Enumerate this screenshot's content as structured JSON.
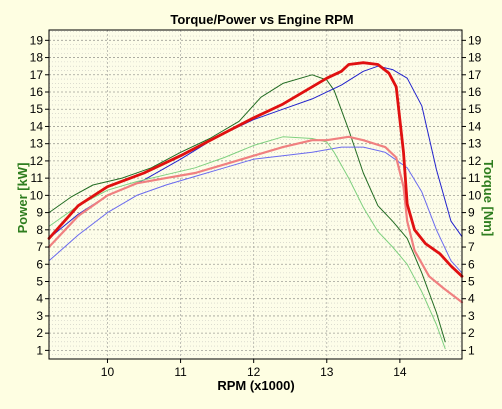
{
  "chart_data": {
    "type": "line",
    "title": "Torque/Power vs Engine RPM",
    "xlabel": "RPM (x1000)",
    "ylabel_left": "Power [kW]",
    "ylabel_right": "Torque [Nm]",
    "ylabel_color": "#2e7d1e",
    "xlim": [
      9.2,
      14.85
    ],
    "ylim": [
      0.5,
      19.6
    ],
    "x_ticks": [
      10,
      11,
      12,
      13,
      14
    ],
    "y_ticks": [
      1,
      2,
      3,
      4,
      5,
      6,
      7,
      8,
      9,
      10,
      11,
      12,
      13,
      14,
      15,
      16,
      17,
      18,
      19
    ],
    "grid": true,
    "series": [
      {
        "color": "#226b22",
        "width": 1,
        "x": [
          9.2,
          9.5,
          9.8,
          10.2,
          10.6,
          11.0,
          11.4,
          11.8,
          12.1,
          12.4,
          12.8,
          13.0,
          13.1,
          13.3,
          13.5,
          13.7,
          13.9,
          14.1,
          14.3,
          14.5,
          14.62
        ],
        "y": [
          9.0,
          9.9,
          10.6,
          11.0,
          11.6,
          12.5,
          13.3,
          14.3,
          15.7,
          16.5,
          17.0,
          16.7,
          16.1,
          13.8,
          11.3,
          9.4,
          8.5,
          7.5,
          5.5,
          3.2,
          1.5
        ]
      },
      {
        "color": "#2222cc",
        "width": 1,
        "x": [
          9.2,
          9.6,
          10.0,
          10.5,
          11.0,
          11.5,
          12.0,
          12.4,
          12.8,
          13.2,
          13.5,
          13.7,
          13.9,
          14.1,
          14.3,
          14.5,
          14.7,
          14.85
        ],
        "y": [
          7.5,
          8.9,
          10.0,
          10.9,
          12.1,
          13.4,
          14.4,
          15.0,
          15.6,
          16.4,
          17.2,
          17.5,
          17.3,
          16.8,
          15.2,
          11.5,
          8.5,
          7.6
        ]
      },
      {
        "color": "#6a6aee",
        "width": 1,
        "x": [
          9.2,
          9.6,
          10.0,
          10.4,
          10.8,
          11.2,
          11.6,
          12.0,
          12.4,
          12.8,
          13.2,
          13.5,
          13.8,
          14.1,
          14.3,
          14.5,
          14.7,
          14.85
        ],
        "y": [
          6.2,
          7.7,
          9.0,
          10.0,
          10.6,
          11.1,
          11.6,
          12.1,
          12.3,
          12.5,
          12.8,
          12.8,
          12.5,
          11.6,
          10.2,
          8.0,
          6.2,
          5.5
        ]
      },
      {
        "color": "#7fd07f",
        "width": 1,
        "x": [
          9.2,
          9.6,
          10.0,
          10.4,
          10.8,
          11.2,
          11.6,
          12.0,
          12.4,
          12.8,
          13.0,
          13.1,
          13.3,
          13.5,
          13.7,
          13.9,
          14.1,
          14.3,
          14.5,
          14.62
        ],
        "y": [
          8.2,
          9.4,
          10.3,
          10.8,
          11.2,
          11.6,
          12.2,
          12.9,
          13.4,
          13.3,
          13.1,
          12.5,
          11.0,
          9.3,
          7.9,
          7.0,
          6.0,
          4.4,
          2.5,
          1.1
        ]
      },
      {
        "color": "#f08080",
        "width": 2.2,
        "x": [
          9.2,
          9.6,
          10.0,
          10.4,
          10.8,
          11.2,
          11.6,
          12.0,
          12.4,
          12.8,
          13.0,
          13.3,
          13.5,
          13.8,
          13.95,
          14.05,
          14.1,
          14.2,
          14.4,
          14.6,
          14.85
        ],
        "y": [
          7.0,
          8.8,
          10.0,
          10.7,
          11.0,
          11.3,
          11.8,
          12.3,
          12.8,
          13.2,
          13.2,
          13.4,
          13.2,
          12.8,
          12.2,
          10.5,
          8.5,
          6.8,
          5.3,
          4.6,
          3.8
        ]
      },
      {
        "color": "#e01010",
        "width": 2.8,
        "x": [
          9.2,
          9.6,
          10.0,
          10.5,
          11.0,
          11.5,
          12.0,
          12.4,
          12.8,
          13.0,
          13.2,
          13.3,
          13.5,
          13.7,
          13.85,
          13.95,
          14.05,
          14.1,
          14.2,
          14.35,
          14.55,
          14.7,
          14.85
        ],
        "y": [
          7.5,
          9.4,
          10.5,
          11.3,
          12.3,
          13.4,
          14.5,
          15.3,
          16.3,
          16.8,
          17.2,
          17.6,
          17.7,
          17.6,
          17.1,
          16.3,
          12.5,
          9.5,
          8.0,
          7.2,
          6.6,
          5.9,
          5.3
        ]
      }
    ]
  }
}
